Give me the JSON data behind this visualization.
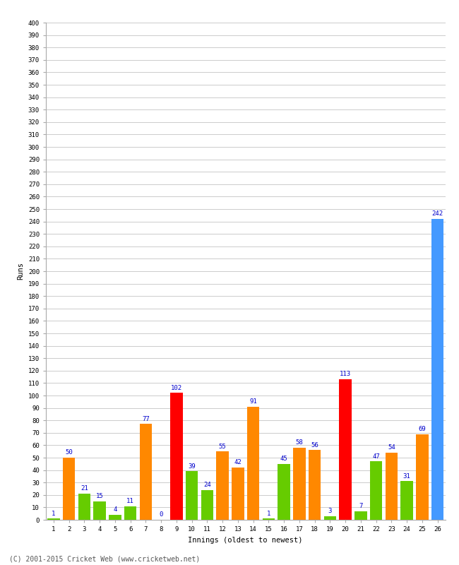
{
  "xlabel": "Innings (oldest to newest)",
  "ylabel": "Runs",
  "footer": "(C) 2001-2015 Cricket Web (www.cricketweb.net)",
  "innings": [
    1,
    2,
    3,
    4,
    5,
    6,
    7,
    8,
    9,
    10,
    11,
    12,
    13,
    14,
    15,
    16,
    17,
    18,
    19,
    20,
    21,
    22,
    23,
    24,
    25,
    26
  ],
  "values": [
    1,
    50,
    21,
    15,
    4,
    11,
    77,
    0,
    102,
    39,
    24,
    55,
    42,
    91,
    1,
    45,
    58,
    56,
    3,
    113,
    7,
    47,
    54,
    31,
    69,
    242
  ],
  "colors": [
    "#66cc00",
    "#ff8800",
    "#66cc00",
    "#66cc00",
    "#66cc00",
    "#66cc00",
    "#ff8800",
    "#66cc00",
    "#ff0000",
    "#66cc00",
    "#66cc00",
    "#ff8800",
    "#ff8800",
    "#ff8800",
    "#66cc00",
    "#66cc00",
    "#ff8800",
    "#ff8800",
    "#66cc00",
    "#ff0000",
    "#66cc00",
    "#66cc00",
    "#ff8800",
    "#66cc00",
    "#ff8800",
    "#4499ff"
  ],
  "label_color": "#0000cc",
  "ylim": [
    0,
    400
  ],
  "ytick_step": 10,
  "bg_color": "#ffffff",
  "grid_color": "#cccccc",
  "bar_width": 0.8,
  "label_fontsize": 6.5,
  "tick_fontsize": 6.5,
  "axis_label_fontsize": 7.5,
  "footer_fontsize": 7
}
